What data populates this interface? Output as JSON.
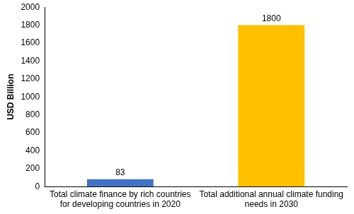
{
  "chart_data": {
    "type": "bar",
    "y_label": "USD Billion",
    "categories": [
      "Total climate finance by rich countries for developing countries in 2020",
      "Total additional annual climate funding needs in 2030"
    ],
    "values": [
      83,
      1800
    ],
    "colors": [
      "#4472c4",
      "#ffc000"
    ],
    "ylim": [
      0,
      2000
    ],
    "yticks": [
      0,
      200,
      400,
      600,
      800,
      1000,
      1200,
      1400,
      1600,
      1800,
      2000
    ],
    "grid": false,
    "data_labels": true
  }
}
